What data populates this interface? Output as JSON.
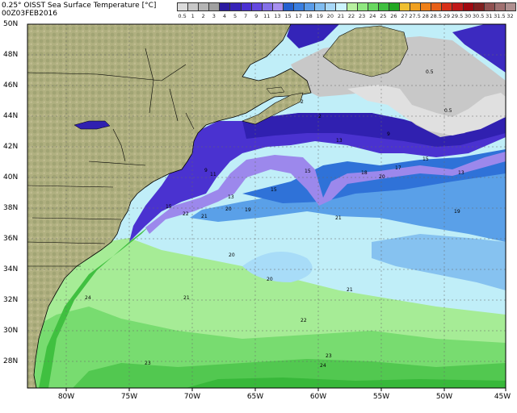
{
  "title": "0.25° OISST Sea Surface Temperature [°C]",
  "date": "00Z03FEB2016",
  "colorbar": {
    "labels": [
      "0.5",
      "1",
      "2",
      "3",
      "4",
      "5",
      "7",
      "9",
      "11",
      "13",
      "15",
      "17",
      "18",
      "19",
      "20",
      "21",
      "22",
      "23",
      "24",
      "25",
      "26",
      "27",
      "27.5",
      "28",
      "28.5",
      "29",
      "29.5",
      "30",
      "30.5",
      "31",
      "31.5",
      "32"
    ],
    "colors": [
      "#dcdcdc",
      "#c8c8c8",
      "#b4b4b4",
      "#a0a0a0",
      "#2a1aa0",
      "#3622b8",
      "#4a30d2",
      "#6448e0",
      "#8470e8",
      "#a890f0",
      "#2460d0",
      "#3a7ee0",
      "#5a9ce8",
      "#80bcf0",
      "#a8d8f8",
      "#ccf4ff",
      "#b8f0a0",
      "#90e880",
      "#68d860",
      "#40c040",
      "#22a822",
      "#f0c030",
      "#f0a020",
      "#f08018",
      "#e86018",
      "#d83018",
      "#c01818",
      "#a00810",
      "#802020",
      "#905050",
      "#a07070",
      "#b09090"
    ]
  },
  "lat_labels": [
    "50N",
    "48N",
    "46N",
    "44N",
    "42N",
    "40N",
    "38N",
    "36N",
    "34N",
    "32N",
    "30N",
    "28N"
  ],
  "lon_labels": [
    "80W",
    "75W",
    "70W",
    "65W",
    "60W",
    "55W",
    "50W",
    "45W"
  ],
  "contour_labels": [
    "0.5",
    "0.5",
    "2",
    "2",
    "9",
    "9",
    "11",
    "13",
    "13",
    "13",
    "15",
    "15",
    "15",
    "15",
    "17",
    "18",
    "19",
    "19",
    "20",
    "20",
    "20",
    "20",
    "21",
    "21",
    "21",
    "21",
    "22",
    "22",
    "23",
    "23",
    "24",
    "24"
  ]
}
